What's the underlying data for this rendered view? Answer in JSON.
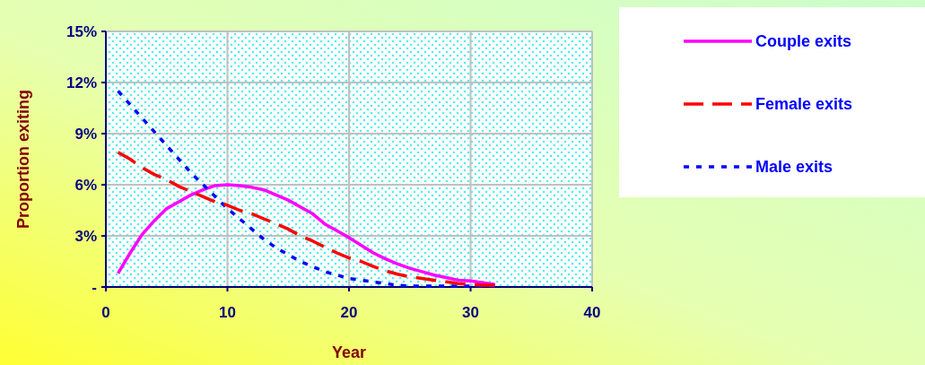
{
  "chart_data": {
    "type": "line",
    "xlabel": "Year",
    "ylabel": "Proportion exiting",
    "x": [
      1,
      2,
      3,
      4,
      5,
      6,
      7,
      8,
      9,
      10,
      11,
      12,
      13,
      14,
      15,
      16,
      17,
      18,
      19,
      20,
      21,
      22,
      23,
      24,
      25,
      26,
      27,
      28,
      29,
      30,
      31,
      32
    ],
    "series": [
      {
        "name": "Couple exits",
        "color": "#ff00ff",
        "line_style": "solid",
        "values": [
          0.8,
          2.0,
          3.1,
          3.9,
          4.6,
          5.0,
          5.4,
          5.7,
          5.95,
          6.0,
          5.95,
          5.85,
          5.7,
          5.4,
          5.1,
          4.7,
          4.3,
          3.7,
          3.3,
          2.9,
          2.45,
          2.0,
          1.65,
          1.35,
          1.1,
          0.9,
          0.7,
          0.55,
          0.4,
          0.35,
          0.25,
          0.15
        ]
      },
      {
        "name": "Female exits",
        "color": "#ff0000",
        "line_style": "dashed",
        "values": [
          7.9,
          7.5,
          7.0,
          6.6,
          6.3,
          5.9,
          5.6,
          5.3,
          5.0,
          4.8,
          4.5,
          4.3,
          4.0,
          3.7,
          3.4,
          3.0,
          2.7,
          2.35,
          2.0,
          1.7,
          1.5,
          1.2,
          0.95,
          0.75,
          0.6,
          0.5,
          0.4,
          0.3,
          0.2,
          0.15,
          0.1,
          0.1
        ]
      },
      {
        "name": "Male exits",
        "color": "#0000ff",
        "line_style": "dotted",
        "values": [
          11.5,
          10.7,
          9.9,
          9.1,
          8.3,
          7.5,
          6.7,
          6.0,
          5.3,
          4.6,
          4.0,
          3.4,
          2.8,
          2.3,
          1.9,
          1.5,
          1.2,
          0.9,
          0.7,
          0.5,
          0.4,
          0.3,
          0.2,
          0.1,
          0.05,
          0.05,
          0.05,
          0.05,
          0.05,
          0.05,
          0.05,
          0.05
        ]
      }
    ],
    "xlim": [
      0,
      40
    ],
    "xticks": [
      0,
      10,
      20,
      30,
      40
    ],
    "ylim": [
      0,
      15
    ],
    "yticks": [
      {
        "value": 0,
        "label": "-"
      },
      {
        "value": 3,
        "label": "3%"
      },
      {
        "value": 6,
        "label": "6%"
      },
      {
        "value": 9,
        "label": "9%"
      },
      {
        "value": 12,
        "label": "12%"
      },
      {
        "value": 15,
        "label": "15%"
      }
    ],
    "grid": true,
    "legend": "right",
    "marker": "none"
  }
}
